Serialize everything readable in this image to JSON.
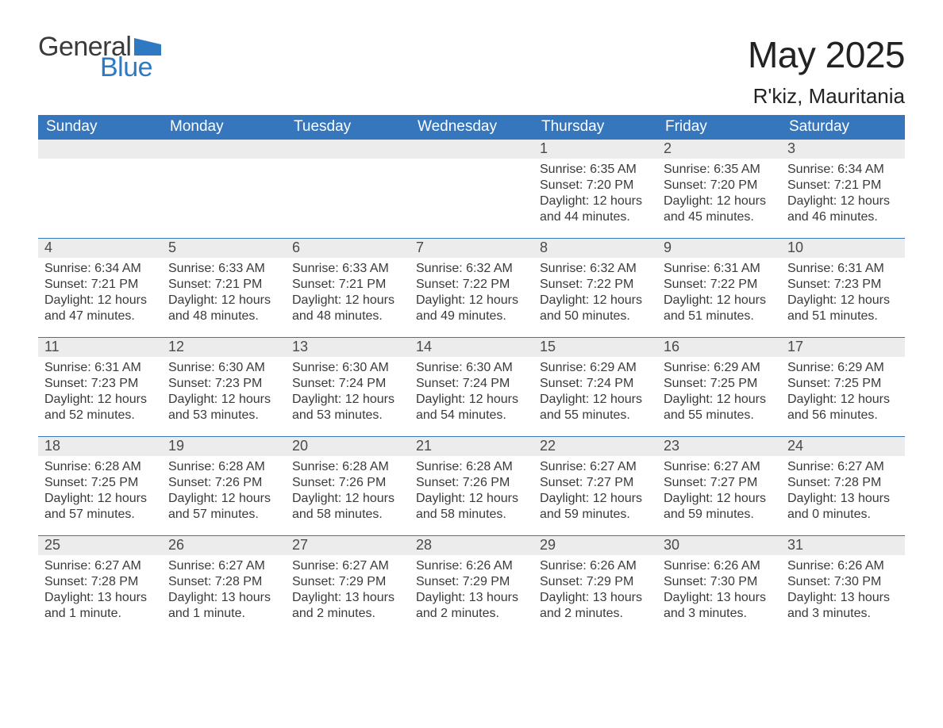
{
  "logo": {
    "text_general": "General",
    "text_blue": "Blue",
    "accent_color": "#2f79c2"
  },
  "title": "May 2025",
  "location": "R'kiz, Mauritania",
  "colors": {
    "header_bg": "#3576bd",
    "header_text": "#ffffff",
    "daynum_bg": "#ececec",
    "daynum_text": "#4a4a4a",
    "body_text": "#3a3a3a",
    "rule": "#3576bd",
    "page_bg": "#ffffff"
  },
  "typography": {
    "title_fontsize": 46,
    "location_fontsize": 26,
    "header_fontsize": 19,
    "daynum_fontsize": 18,
    "body_fontsize": 16,
    "font_family": "Arial"
  },
  "layout": {
    "columns": 7,
    "rows": 5,
    "week_start": "Sunday"
  },
  "weekdays": [
    "Sunday",
    "Monday",
    "Tuesday",
    "Wednesday",
    "Thursday",
    "Friday",
    "Saturday"
  ],
  "weeks": [
    [
      {
        "day": null
      },
      {
        "day": null
      },
      {
        "day": null
      },
      {
        "day": null
      },
      {
        "day": 1,
        "sunrise": "6:35 AM",
        "sunset": "7:20 PM",
        "daylight": "12 hours and 44 minutes."
      },
      {
        "day": 2,
        "sunrise": "6:35 AM",
        "sunset": "7:20 PM",
        "daylight": "12 hours and 45 minutes."
      },
      {
        "day": 3,
        "sunrise": "6:34 AM",
        "sunset": "7:21 PM",
        "daylight": "12 hours and 46 minutes."
      }
    ],
    [
      {
        "day": 4,
        "sunrise": "6:34 AM",
        "sunset": "7:21 PM",
        "daylight": "12 hours and 47 minutes."
      },
      {
        "day": 5,
        "sunrise": "6:33 AM",
        "sunset": "7:21 PM",
        "daylight": "12 hours and 48 minutes."
      },
      {
        "day": 6,
        "sunrise": "6:33 AM",
        "sunset": "7:21 PM",
        "daylight": "12 hours and 48 minutes."
      },
      {
        "day": 7,
        "sunrise": "6:32 AM",
        "sunset": "7:22 PM",
        "daylight": "12 hours and 49 minutes."
      },
      {
        "day": 8,
        "sunrise": "6:32 AM",
        "sunset": "7:22 PM",
        "daylight": "12 hours and 50 minutes."
      },
      {
        "day": 9,
        "sunrise": "6:31 AM",
        "sunset": "7:22 PM",
        "daylight": "12 hours and 51 minutes."
      },
      {
        "day": 10,
        "sunrise": "6:31 AM",
        "sunset": "7:23 PM",
        "daylight": "12 hours and 51 minutes."
      }
    ],
    [
      {
        "day": 11,
        "sunrise": "6:31 AM",
        "sunset": "7:23 PM",
        "daylight": "12 hours and 52 minutes."
      },
      {
        "day": 12,
        "sunrise": "6:30 AM",
        "sunset": "7:23 PM",
        "daylight": "12 hours and 53 minutes."
      },
      {
        "day": 13,
        "sunrise": "6:30 AM",
        "sunset": "7:24 PM",
        "daylight": "12 hours and 53 minutes."
      },
      {
        "day": 14,
        "sunrise": "6:30 AM",
        "sunset": "7:24 PM",
        "daylight": "12 hours and 54 minutes."
      },
      {
        "day": 15,
        "sunrise": "6:29 AM",
        "sunset": "7:24 PM",
        "daylight": "12 hours and 55 minutes."
      },
      {
        "day": 16,
        "sunrise": "6:29 AM",
        "sunset": "7:25 PM",
        "daylight": "12 hours and 55 minutes."
      },
      {
        "day": 17,
        "sunrise": "6:29 AM",
        "sunset": "7:25 PM",
        "daylight": "12 hours and 56 minutes."
      }
    ],
    [
      {
        "day": 18,
        "sunrise": "6:28 AM",
        "sunset": "7:25 PM",
        "daylight": "12 hours and 57 minutes."
      },
      {
        "day": 19,
        "sunrise": "6:28 AM",
        "sunset": "7:26 PM",
        "daylight": "12 hours and 57 minutes."
      },
      {
        "day": 20,
        "sunrise": "6:28 AM",
        "sunset": "7:26 PM",
        "daylight": "12 hours and 58 minutes."
      },
      {
        "day": 21,
        "sunrise": "6:28 AM",
        "sunset": "7:26 PM",
        "daylight": "12 hours and 58 minutes."
      },
      {
        "day": 22,
        "sunrise": "6:27 AM",
        "sunset": "7:27 PM",
        "daylight": "12 hours and 59 minutes."
      },
      {
        "day": 23,
        "sunrise": "6:27 AM",
        "sunset": "7:27 PM",
        "daylight": "12 hours and 59 minutes."
      },
      {
        "day": 24,
        "sunrise": "6:27 AM",
        "sunset": "7:28 PM",
        "daylight": "13 hours and 0 minutes."
      }
    ],
    [
      {
        "day": 25,
        "sunrise": "6:27 AM",
        "sunset": "7:28 PM",
        "daylight": "13 hours and 1 minute."
      },
      {
        "day": 26,
        "sunrise": "6:27 AM",
        "sunset": "7:28 PM",
        "daylight": "13 hours and 1 minute."
      },
      {
        "day": 27,
        "sunrise": "6:27 AM",
        "sunset": "7:29 PM",
        "daylight": "13 hours and 2 minutes."
      },
      {
        "day": 28,
        "sunrise": "6:26 AM",
        "sunset": "7:29 PM",
        "daylight": "13 hours and 2 minutes."
      },
      {
        "day": 29,
        "sunrise": "6:26 AM",
        "sunset": "7:29 PM",
        "daylight": "13 hours and 2 minutes."
      },
      {
        "day": 30,
        "sunrise": "6:26 AM",
        "sunset": "7:30 PM",
        "daylight": "13 hours and 3 minutes."
      },
      {
        "day": 31,
        "sunrise": "6:26 AM",
        "sunset": "7:30 PM",
        "daylight": "13 hours and 3 minutes."
      }
    ]
  ],
  "labels": {
    "sunrise": "Sunrise:",
    "sunset": "Sunset:",
    "daylight": "Daylight:"
  }
}
